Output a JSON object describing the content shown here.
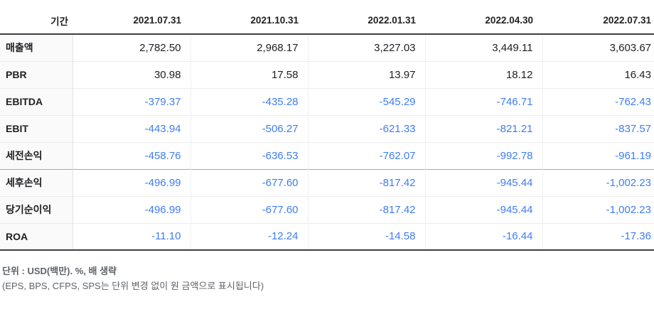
{
  "table": {
    "header": {
      "period_label": "기간",
      "columns": [
        "2021.07.31",
        "2021.10.31",
        "2022.01.31",
        "2022.04.30",
        "2022.07.31"
      ]
    },
    "rows": [
      {
        "label": "매출액",
        "values": [
          "2,782.50",
          "2,968.17",
          "3,227.03",
          "3,449.11",
          "3,603.67"
        ],
        "section_end": false
      },
      {
        "label": "PBR",
        "values": [
          "30.98",
          "17.58",
          "13.97",
          "18.12",
          "16.43"
        ],
        "section_end": false
      },
      {
        "label": "EBITDA",
        "values": [
          "-379.37",
          "-435.28",
          "-545.29",
          "-746.71",
          "-762.43"
        ],
        "section_end": false
      },
      {
        "label": "EBIT",
        "values": [
          "-443.94",
          "-506.27",
          "-621.33",
          "-821.21",
          "-837.57"
        ],
        "section_end": false
      },
      {
        "label": "세전손익",
        "values": [
          "-458.76",
          "-636.53",
          "-762.07",
          "-992.78",
          "-961.19"
        ],
        "section_end": true
      },
      {
        "label": "세후손익",
        "values": [
          "-496.99",
          "-677.60",
          "-817.42",
          "-945.44",
          "-1,002.23"
        ],
        "section_end": false
      },
      {
        "label": "당기순이익",
        "values": [
          "-496.99",
          "-677.60",
          "-817.42",
          "-945.44",
          "-1,002.23"
        ],
        "section_end": false
      },
      {
        "label": "ROA",
        "values": [
          "-11.10",
          "-12.24",
          "-14.58",
          "-16.44",
          "-17.36"
        ],
        "section_end": false
      }
    ]
  },
  "footer": {
    "unit_note": "단위 : USD(백만). %, 배 생략",
    "detail_note": "(EPS, BPS, CFPS, SPS는 단위 변경 없이 원 금액으로 표시됩니다)"
  },
  "colors": {
    "negative_value": "#3e7df4",
    "text_primary": "#202124",
    "text_secondary": "#5f6368",
    "header_border": "#3c4043",
    "row_border": "#ececec",
    "section_border": "#a9a9a9",
    "label_column_bg": "#fafafa"
  }
}
